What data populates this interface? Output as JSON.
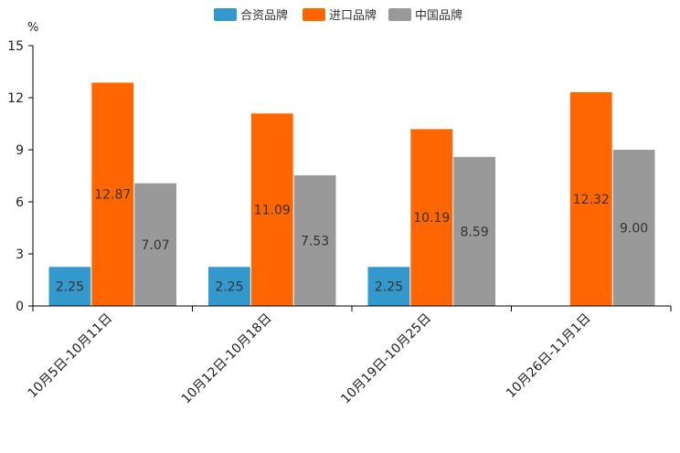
{
  "chart_data": {
    "type": "bar",
    "unit": "%",
    "categories": [
      "10月5日-10月11日",
      "10月12日-10月18日",
      "10月19日-10月25日",
      "10月26日-11月1日"
    ],
    "series": [
      {
        "name": "合资品牌",
        "color": "#3399cc",
        "values": [
          2.25,
          2.25,
          2.25,
          null
        ]
      },
      {
        "name": "进口品牌",
        "color": "#ff6600",
        "values": [
          12.87,
          11.09,
          10.19,
          12.32
        ]
      },
      {
        "name": "中国品牌",
        "color": "#999999",
        "values": [
          7.07,
          7.53,
          8.59,
          9.0
        ]
      }
    ],
    "data_labels": [
      [
        "2.25",
        "2.25",
        "2.25",
        null
      ],
      [
        "12.87",
        "11.09",
        "10.19",
        "12.32"
      ],
      [
        "7.07",
        "7.53",
        "8.59",
        "9.00"
      ]
    ],
    "y_ticks": [
      0,
      3,
      6,
      9,
      12,
      15
    ],
    "ylim": [
      0,
      15
    ],
    "grid": false,
    "legend_position": "top-center",
    "xlabel": "",
    "ylabel": "%"
  }
}
